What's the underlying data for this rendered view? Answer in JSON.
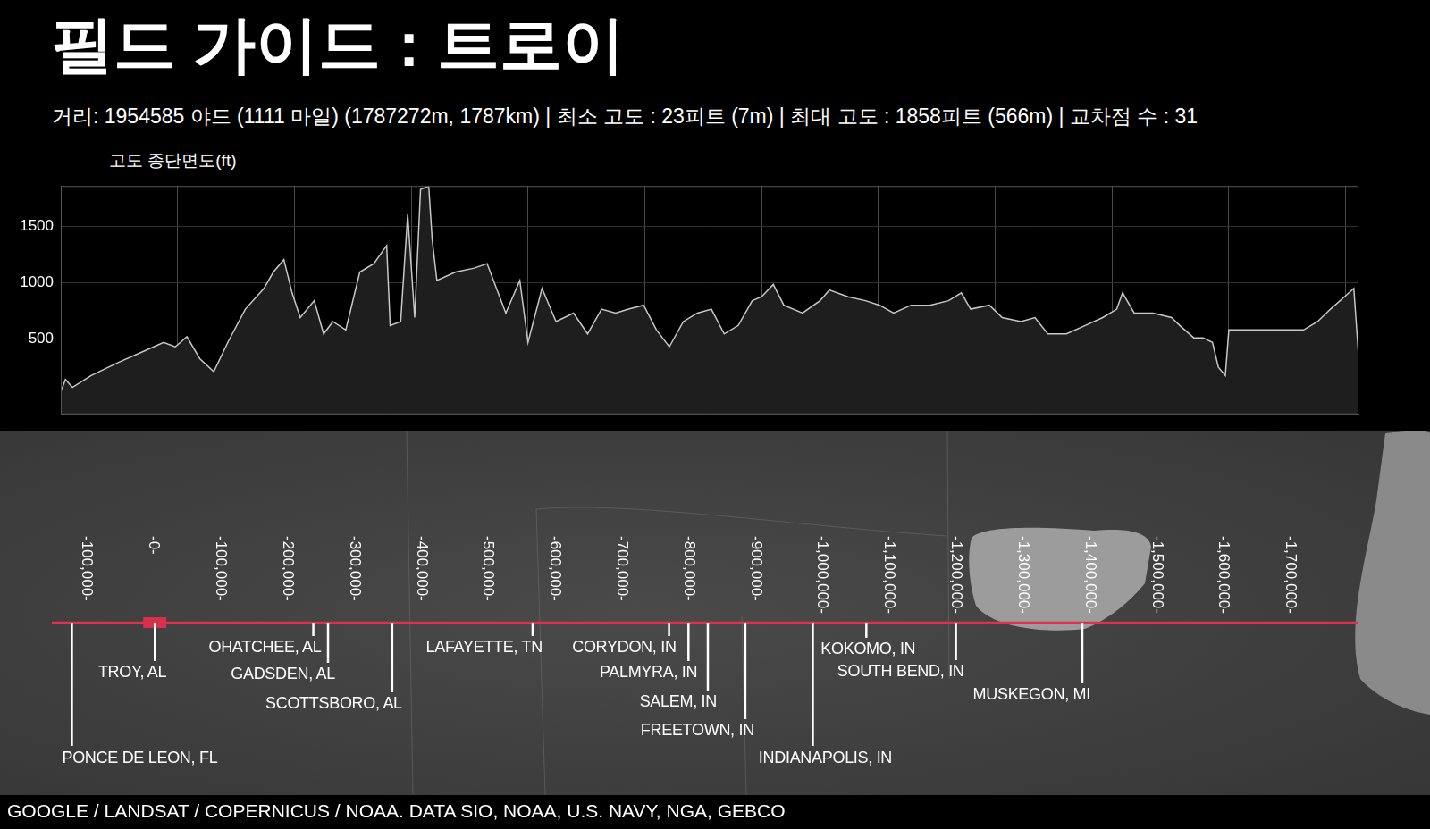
{
  "chart_data": {
    "type": "line",
    "title": "필드 가이드 : 트로이",
    "subtitle": "거리: 1954585 야드 (1111 마일) (1787272m, 1787km) | 최소 고도 : 23피트 (7m) | 최대 고도 : 1858피트 (566m) | 교차점 수 : 31",
    "y_label": "고도 종단면도(ft)",
    "x": [
      0,
      4,
      10,
      26,
      49,
      73,
      88,
      98,
      108,
      119,
      131,
      143,
      158,
      174,
      182,
      191,
      198,
      205,
      217,
      225,
      233,
      244,
      256,
      268,
      279,
      282,
      291,
      297,
      303,
      308,
      315,
      318,
      322,
      338,
      354,
      365,
      373,
      381,
      393,
      400,
      412,
      424,
      439,
      451,
      463,
      475,
      486,
      499,
      510,
      521,
      533,
      545,
      557,
      568,
      580,
      592,
      600,
      610,
      619,
      635,
      650,
      658,
      674,
      689,
      701,
      713,
      728,
      744,
      760,
      771,
      779,
      795,
      806,
      822,
      834,
      845,
      861,
      877,
      892,
      904,
      909,
      919,
      935,
      951,
      958,
      970,
      978,
      986,
      991,
      997,
      1000,
      1064,
      1076,
      1087,
      1099,
      1107,
      1111
    ],
    "values": [
      30,
      140,
      70,
      175,
      290,
      400,
      470,
      430,
      520,
      325,
      210,
      470,
      765,
      950,
      1095,
      1205,
      910,
      690,
      840,
      545,
      655,
      580,
      1095,
      1170,
      1330,
      620,
      655,
      1610,
      690,
      1830,
      1858,
      1380,
      1020,
      1095,
      1130,
      1170,
      950,
      730,
      1020,
      470,
      950,
      655,
      730,
      545,
      765,
      730,
      765,
      800,
      580,
      430,
      655,
      730,
      765,
      545,
      620,
      840,
      875,
      985,
      800,
      730,
      840,
      935,
      875,
      840,
      800,
      730,
      800,
      800,
      840,
      910,
      765,
      800,
      690,
      655,
      690,
      545,
      545,
      620,
      690,
      765,
      910,
      730,
      730,
      690,
      620,
      510,
      510,
      470,
      250,
      175,
      580,
      580,
      655,
      765,
      875,
      950,
      360
    ],
    "color": "#c8c8c8",
    "xlim": [
      0,
      1111
    ],
    "xticks": [
      0,
      100,
      200,
      300,
      400,
      500,
      600,
      700,
      800,
      900,
      1000,
      1100
    ],
    "ylim": [
      -170,
      1860
    ],
    "yticks": [
      500,
      1000,
      1500
    ],
    "grid": true,
    "tick_labels": "y"
  },
  "map": {
    "xlim": [
      -154000,
      1800000
    ],
    "distance_ticks": [
      {
        "value": -100000,
        "label": "-100,000-"
      },
      {
        "value": 0,
        "label": "-0-"
      },
      {
        "value": 100000,
        "label": "-100,000-"
      },
      {
        "value": 200000,
        "label": "-200,000-"
      },
      {
        "value": 300000,
        "label": "-300,000-"
      },
      {
        "value": 400000,
        "label": "-400,000-"
      },
      {
        "value": 500000,
        "label": "-500,000-"
      },
      {
        "value": 600000,
        "label": "-600,000-"
      },
      {
        "value": 700000,
        "label": "-700,000-"
      },
      {
        "value": 800000,
        "label": "-800,000-"
      },
      {
        "value": 900000,
        "label": "-900,000-"
      },
      {
        "value": 1000000,
        "label": "-1,000,000-"
      },
      {
        "value": 1100000,
        "label": "-1,100,000-"
      },
      {
        "value": 1200000,
        "label": "-1,200,000-"
      },
      {
        "value": 1300000,
        "label": "-1,300,000-"
      },
      {
        "value": 1400000,
        "label": "-1,400,000-"
      },
      {
        "value": 1500000,
        "label": "-1,500,000-"
      },
      {
        "value": 1600000,
        "label": "-1,600,000-"
      },
      {
        "value": 1700000,
        "label": "-1,700,000-"
      }
    ],
    "places": [
      {
        "name": "PONCE DE LEON, FL",
        "distance": -124000
      },
      {
        "name": "TROY, AL",
        "distance": 0
      },
      {
        "name": "OHATCHEE, AL",
        "distance": 237000
      },
      {
        "name": "GADSDEN, AL",
        "distance": 259000
      },
      {
        "name": "SCOTTSBORO, AL",
        "distance": 355000
      },
      {
        "name": "LAFAYETTE, TN",
        "distance": 565000
      },
      {
        "name": "CORYDON, IN",
        "distance": 769000
      },
      {
        "name": "PALMYRA, IN",
        "distance": 798000
      },
      {
        "name": "SALEM, IN",
        "distance": 827000
      },
      {
        "name": "FREETOWN, IN",
        "distance": 883000
      },
      {
        "name": "INDIANAPOLIS, IN",
        "distance": 984000
      },
      {
        "name": "KOKOMO, IN",
        "distance": 1064000
      },
      {
        "name": "SOUTH BEND, IN",
        "distance": 1198000
      },
      {
        "name": "MUSKEGON, MI",
        "distance": 1387000
      }
    ],
    "credit": "GOOGLE / LANDSAT / COPERNICUS / NOAA. DATA SIO, NOAA, U.S. NAVY, NGA, GEBCO"
  }
}
